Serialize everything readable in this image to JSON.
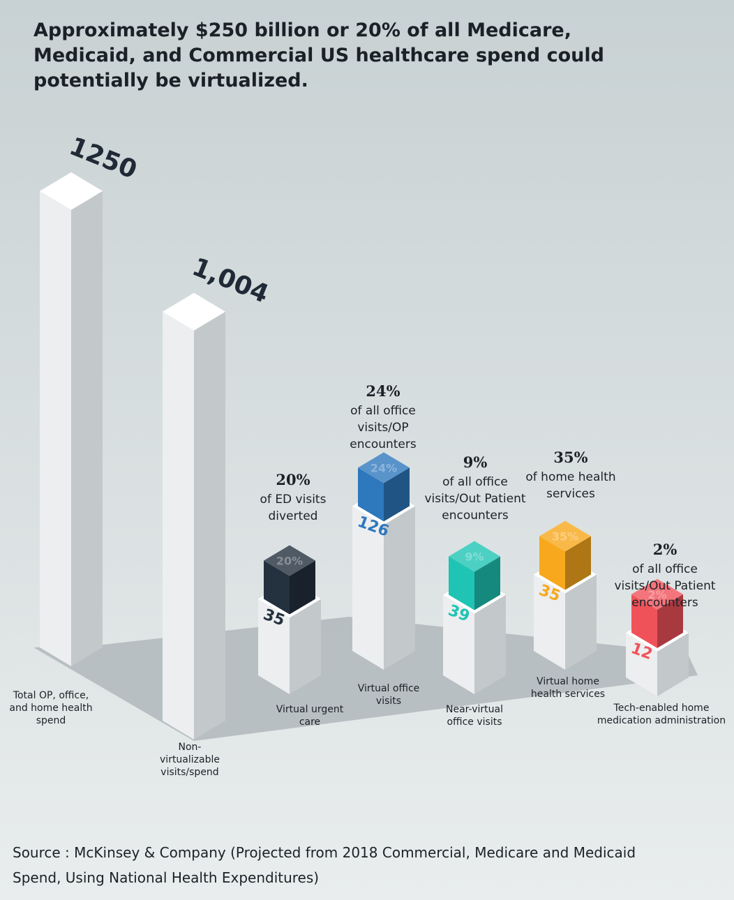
{
  "chart_data": {
    "type": "bar",
    "title": "Approximately $250 billion or 20% of all Medicare, Medicaid, and Commercial US healthcare spend could potentially be virtualized.",
    "categories": [
      "Total OP, office, and home health spend",
      "Non-virtualizable visits/spend",
      "Virtual urgent care",
      "Virtual office visits",
      "Near-virtual office visits",
      "Virtual home health services",
      "Tech-enabled home medication administration"
    ],
    "values": [
      1250,
      1004,
      35,
      126,
      39,
      35,
      12
    ],
    "value_labels": [
      "1250",
      "1,004",
      "35",
      "126",
      "39",
      "35",
      "12"
    ],
    "shares": [
      null,
      null,
      20,
      24,
      9,
      35,
      2
    ],
    "share_labels": [
      null,
      null,
      "20%",
      "24%",
      "9%",
      "35%",
      "2%"
    ],
    "share_notes": [
      null,
      null,
      "of ED visits diverted",
      "of all office visits/OP encounters",
      "of all office visits/Out Patient encounters",
      "of home health services",
      "of all office visits/Out Patient encounters"
    ],
    "colors": [
      null,
      null,
      "#24313f",
      "#2e78bd",
      "#1fc4b4",
      "#f8a81c",
      "#f0525a"
    ],
    "source": "Source : McKinsey & Company (Projected from 2018 Commercial, Medicare and Medicaid Spend, Using National Health Expenditures)"
  }
}
